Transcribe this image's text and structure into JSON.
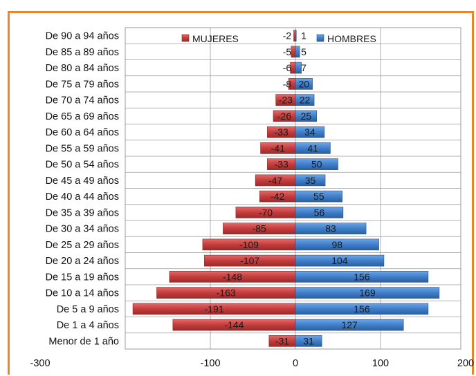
{
  "chart_data": {
    "type": "bar",
    "orientation": "horizontal",
    "title": "",
    "xlabel": "",
    "ylabel": "",
    "xlim": [
      -300,
      200
    ],
    "xticks": [
      -300,
      -100,
      0,
      100,
      200
    ],
    "xtick_labels": [
      "-300",
      "-100",
      "0",
      "100",
      "200"
    ],
    "grid": true,
    "legend_position": "top",
    "categories": [
      "Menor de 1 año",
      "De 1 a 4 años",
      "De 5 a 9 años",
      "De 10 a 14 años",
      "De 15 a 19 años",
      "De 20 a 24 años",
      "De 25 a 29 años",
      "De 30 a 34 años",
      "De 35 a 39 años",
      "De 40 a 44 años",
      "De 45 a 49 años",
      "De 50 a 54 años",
      "De 55 a 59 años",
      "De 60 a 64 años",
      "De 65 a 69 años",
      "De 70 a 74 años",
      "De 75 a 79 años",
      "De 80 a 84 años",
      "De 85 a 89 años",
      "De 90 a 94 años"
    ],
    "series": [
      {
        "name": "MUJERES",
        "color": "#C0393B",
        "values": [
          -31,
          -144,
          -191,
          -163,
          -148,
          -107,
          -109,
          -85,
          -70,
          -42,
          -47,
          -33,
          -41,
          -33,
          -26,
          -23,
          -8,
          -6,
          -5,
          -2
        ]
      },
      {
        "name": "HOMBRES",
        "color": "#3C7CC6",
        "values": [
          31,
          127,
          156,
          169,
          156,
          104,
          98,
          83,
          56,
          55,
          35,
          50,
          41,
          34,
          25,
          22,
          20,
          7,
          5,
          1
        ]
      }
    ]
  }
}
